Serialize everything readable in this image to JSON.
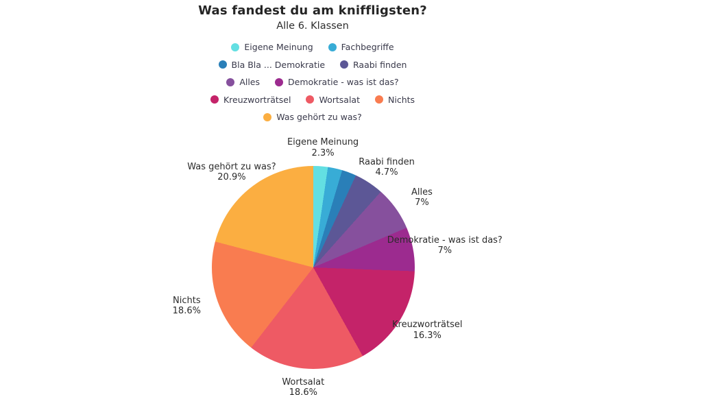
{
  "header": {
    "title": "Was fandest du am kniffligsten?",
    "subtitle": "Alle 6. Klassen"
  },
  "chart_data": {
    "type": "pie",
    "title": "Was fandest du am kniffligsten?",
    "subtitle": "Alle 6. Klassen",
    "legend_position": "top-center",
    "direction": "clockwise",
    "start_angle_deg": 0,
    "slices": [
      {
        "label": "Eigene Meinung",
        "value": 2.3,
        "percent_label": "2.3%",
        "color": "#63DFE2"
      },
      {
        "label": "Fachbegriffe",
        "value": 2.3,
        "percent_label": null,
        "color": "#38ACD6"
      },
      {
        "label": "Bla Bla ... Demokratie",
        "value": 2.3,
        "percent_label": null,
        "color": "#2A7FB8"
      },
      {
        "label": "Raabi finden",
        "value": 4.7,
        "percent_label": "4.7%",
        "color": "#5C5796"
      },
      {
        "label": "Alles",
        "value": 7,
        "percent_label": "7%",
        "color": "#86509D"
      },
      {
        "label": "Demokratie - was ist das?",
        "value": 7,
        "percent_label": "7%",
        "color": "#9C2B8F"
      },
      {
        "label": "Kreuzworträtsel",
        "value": 16.3,
        "percent_label": "16.3%",
        "color": "#C42369"
      },
      {
        "label": "Wortsalat",
        "value": 18.6,
        "percent_label": "18.6%",
        "color": "#EE5A64"
      },
      {
        "label": "Nichts",
        "value": 18.6,
        "percent_label": "18.6%",
        "color": "#F97C50"
      },
      {
        "label": "Was gehört zu was?",
        "value": 20.9,
        "percent_label": "20.9%",
        "color": "#FBAE41"
      }
    ]
  },
  "legend": {
    "rows": [
      [
        0,
        1
      ],
      [
        2,
        3
      ],
      [
        4,
        5
      ],
      [
        6,
        7,
        8
      ],
      [
        9
      ]
    ]
  }
}
